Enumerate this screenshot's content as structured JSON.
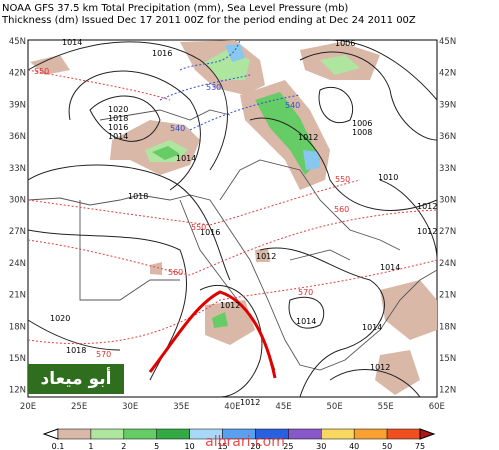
{
  "header": {
    "line1": "NOAA GFS 37.5 km Total Precipitation (mm), Sea Level Pressure (mb)",
    "line2": "Thickness (dm)   Issued Dec 17 2011 00Z for the period ending at Dec 24 2011 00Z"
  },
  "latitudes": [
    "45N",
    "42N",
    "39N",
    "36N",
    "33N",
    "30N",
    "27N",
    "24N",
    "21N",
    "18N",
    "15N",
    "12N"
  ],
  "longitudes": [
    "20E",
    "25E",
    "30E",
    "35E",
    "40E",
    "45E",
    "50E",
    "55E",
    "60E"
  ],
  "pressure_labels": [
    "1014",
    "1016",
    "1020",
    "1018",
    "1016",
    "1014",
    "1014",
    "1018",
    "1016",
    "1012",
    "1012",
    "1020",
    "1018",
    "1012",
    "1014",
    "1012",
    "1006",
    "1008",
    "1006",
    "1010",
    "1012",
    "1014",
    "1014",
    "1012",
    "1012"
  ],
  "thickness_labels": [
    "550",
    "530",
    "540",
    "540",
    "550",
    "560",
    "550",
    "560",
    "570",
    "570"
  ],
  "colorbar": {
    "labels": [
      "0.1",
      "1",
      "2",
      "5",
      "10",
      "15",
      "20",
      "25",
      "30",
      "40",
      "50",
      "75"
    ],
    "colors": [
      "#ffffff",
      "#d9b8a8",
      "#aee6a0",
      "#66cc66",
      "#33aa44",
      "#a8d8f8",
      "#5aa0f0",
      "#2860e0",
      "#8858c8",
      "#f8d860",
      "#f8a030",
      "#f05020",
      "#b01818"
    ]
  },
  "watermark": "أبو ميعاد",
  "site": "albrari.com"
}
